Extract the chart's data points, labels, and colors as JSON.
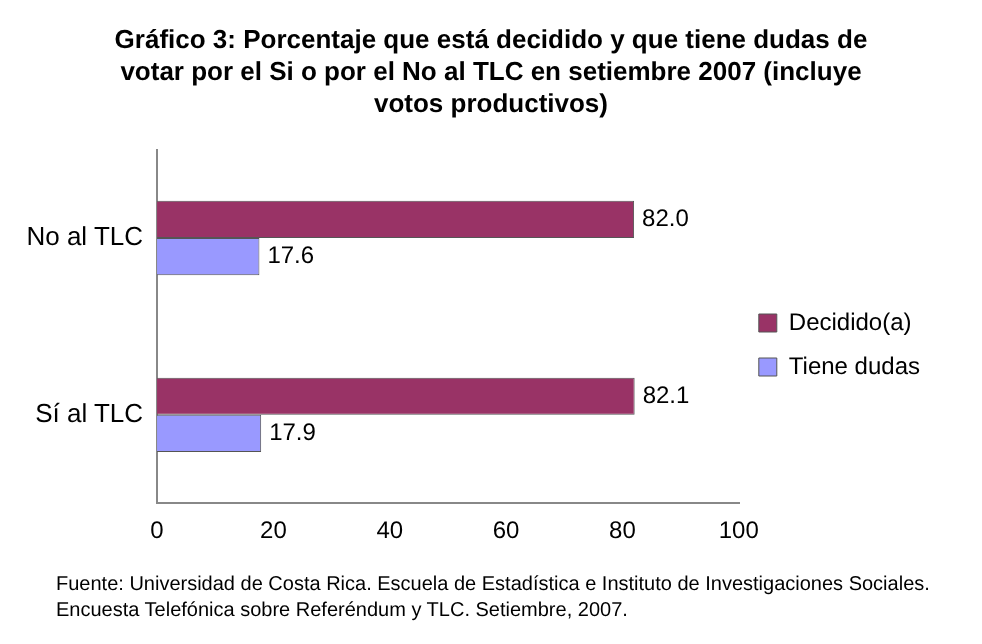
{
  "chart_data": {
    "type": "bar",
    "orientation": "horizontal",
    "title": "Gráfico 3: Porcentaje que está decidido y que tiene dudas de votar por el Si o por el No al TLC en setiembre 2007 (incluye votos productivos)",
    "categories": [
      "No al TLC",
      "Sí al TLC"
    ],
    "series": [
      {
        "name": "Decidido(a)",
        "color": "#993366",
        "values": [
          82.0,
          82.1
        ],
        "value_labels": [
          "82.0",
          "82.1"
        ]
      },
      {
        "name": "Tiene dudas",
        "color": "#9999ff",
        "values": [
          17.6,
          17.9
        ],
        "value_labels": [
          "17.6",
          "17.9"
        ]
      }
    ],
    "xlim": [
      0,
      100
    ],
    "xticks": [
      0,
      20,
      40,
      60,
      80,
      100
    ],
    "grid": false,
    "legend": "right",
    "annotations": [
      "Fuente: Universidad de Costa Rica. Escuela de Estadística e Instituto de Investigaciones Sociales. Encuesta Telefónica sobre Referéndum y TLC. Setiembre, 2007."
    ]
  }
}
